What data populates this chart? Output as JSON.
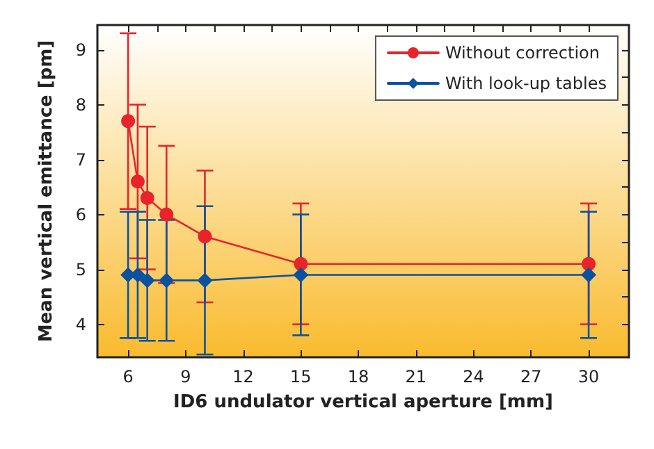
{
  "chart_data": {
    "type": "line",
    "xlabel": "ID6 undulator vertical aperture [mm]",
    "ylabel": "Mean vertical emittance [pm]",
    "x": [
      6,
      6.5,
      7,
      8,
      10,
      15,
      30
    ],
    "series": [
      {
        "name": "Without correction",
        "color": "#e8242a",
        "marker": "circle",
        "values": [
          7.7,
          6.6,
          6.3,
          6.0,
          5.6,
          5.1,
          5.1
        ],
        "errors": [
          [
            6.1,
            9.3
          ],
          [
            5.2,
            8.0
          ],
          [
            5.0,
            7.6
          ],
          [
            4.75,
            7.25
          ],
          [
            4.4,
            6.8
          ],
          [
            4.0,
            6.2
          ],
          [
            4.0,
            6.2
          ]
        ]
      },
      {
        "name": "With look-up tables",
        "color": "#0a52a0",
        "marker": "diamond",
        "values": [
          4.9,
          4.9,
          4.8,
          4.8,
          4.8,
          4.9,
          4.9
        ],
        "errors": [
          [
            3.75,
            6.05
          ],
          [
            3.75,
            6.05
          ],
          [
            3.7,
            5.9
          ],
          [
            3.7,
            5.9
          ],
          [
            3.45,
            6.15
          ],
          [
            3.8,
            6.0
          ],
          [
            3.75,
            6.05
          ]
        ]
      }
    ],
    "xlim": [
      4.4,
      32.1
    ],
    "xticks": [
      6,
      9,
      12,
      15,
      18,
      21,
      24,
      27,
      30
    ],
    "ylim": [
      3.4,
      9.45
    ],
    "yticks": [
      4,
      5,
      6,
      7,
      8,
      9
    ],
    "grid": false,
    "legend": "top right",
    "line_style": "solid"
  }
}
